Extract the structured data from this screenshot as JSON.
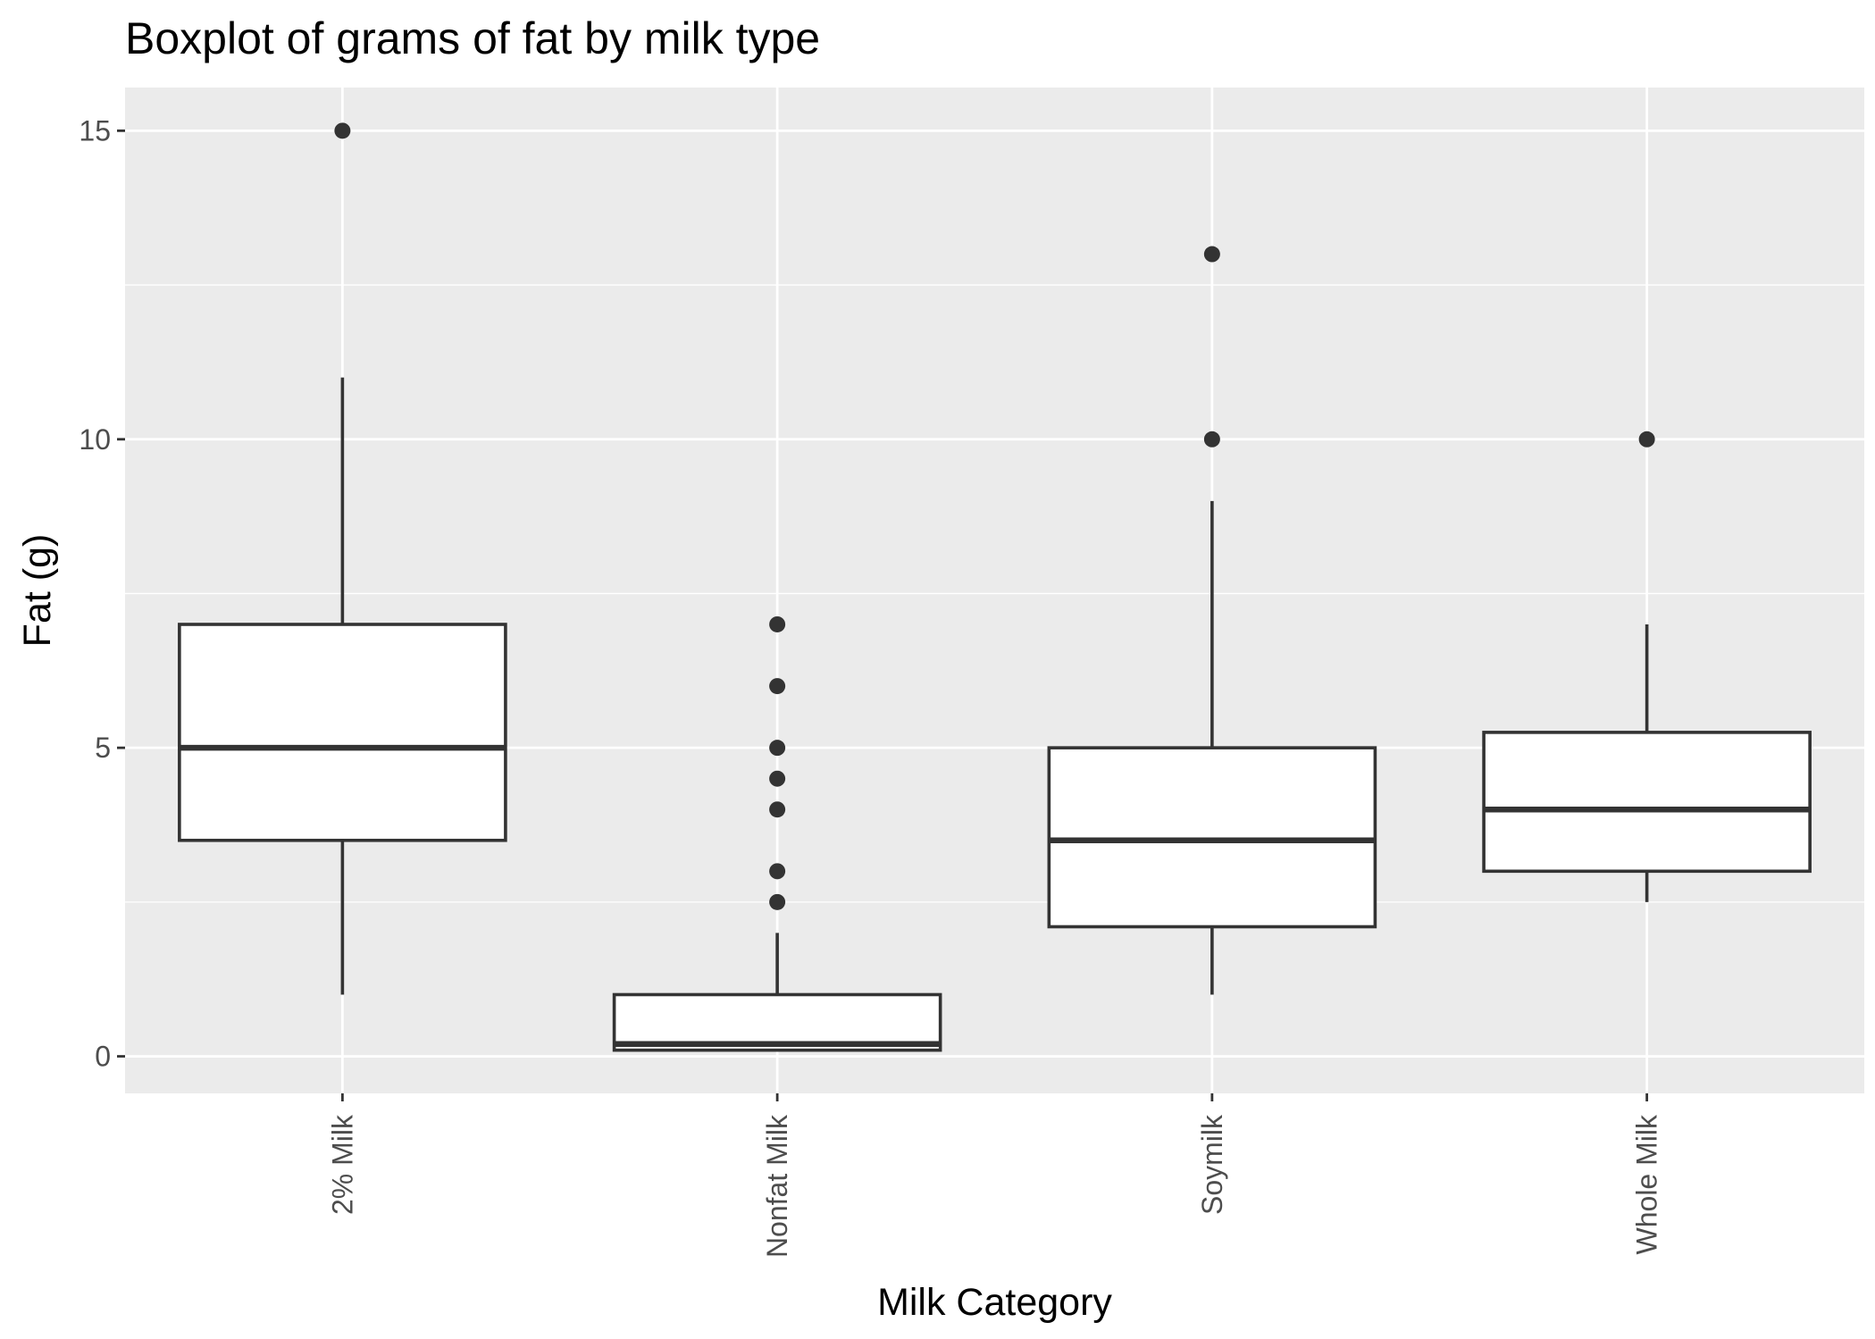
{
  "chart_data": {
    "type": "boxplot",
    "title": "Boxplot of grams of fat by milk type",
    "xlabel": "Milk Category",
    "ylabel": "Fat (g)",
    "ylim": [
      -0.6,
      15.7
    ],
    "yticks": [
      0,
      5,
      10,
      15
    ],
    "grid": true,
    "legend": "none",
    "categories": [
      "2% Milk",
      "Nonfat Milk",
      "Soymilk",
      "Whole Milk"
    ],
    "boxes": [
      {
        "category": "2% Milk",
        "whisker_low": 1,
        "q1": 3.5,
        "median": 5,
        "q3": 7,
        "whisker_high": 11,
        "outliers": [
          15
        ]
      },
      {
        "category": "Nonfat Milk",
        "whisker_low": 0.1,
        "q1": 0.1,
        "median": 0.2,
        "q3": 1,
        "whisker_high": 2,
        "outliers": [
          2.5,
          3,
          4,
          4.5,
          5,
          6,
          7
        ]
      },
      {
        "category": "Soymilk",
        "whisker_low": 1,
        "q1": 2.1,
        "median": 3.5,
        "q3": 5,
        "whisker_high": 9,
        "outliers": [
          10,
          13
        ]
      },
      {
        "category": "Whole Milk",
        "whisker_low": 2.5,
        "q1": 3,
        "median": 4,
        "q3": 5.25,
        "whisker_high": 7,
        "outliers": [
          10
        ]
      }
    ],
    "colors": {
      "panel": "#ebebeb",
      "grid": "#ffffff",
      "box_fill": "#ffffff",
      "box_line": "#333333",
      "point": "#333333",
      "tick_text": "#4d4d4d"
    }
  }
}
